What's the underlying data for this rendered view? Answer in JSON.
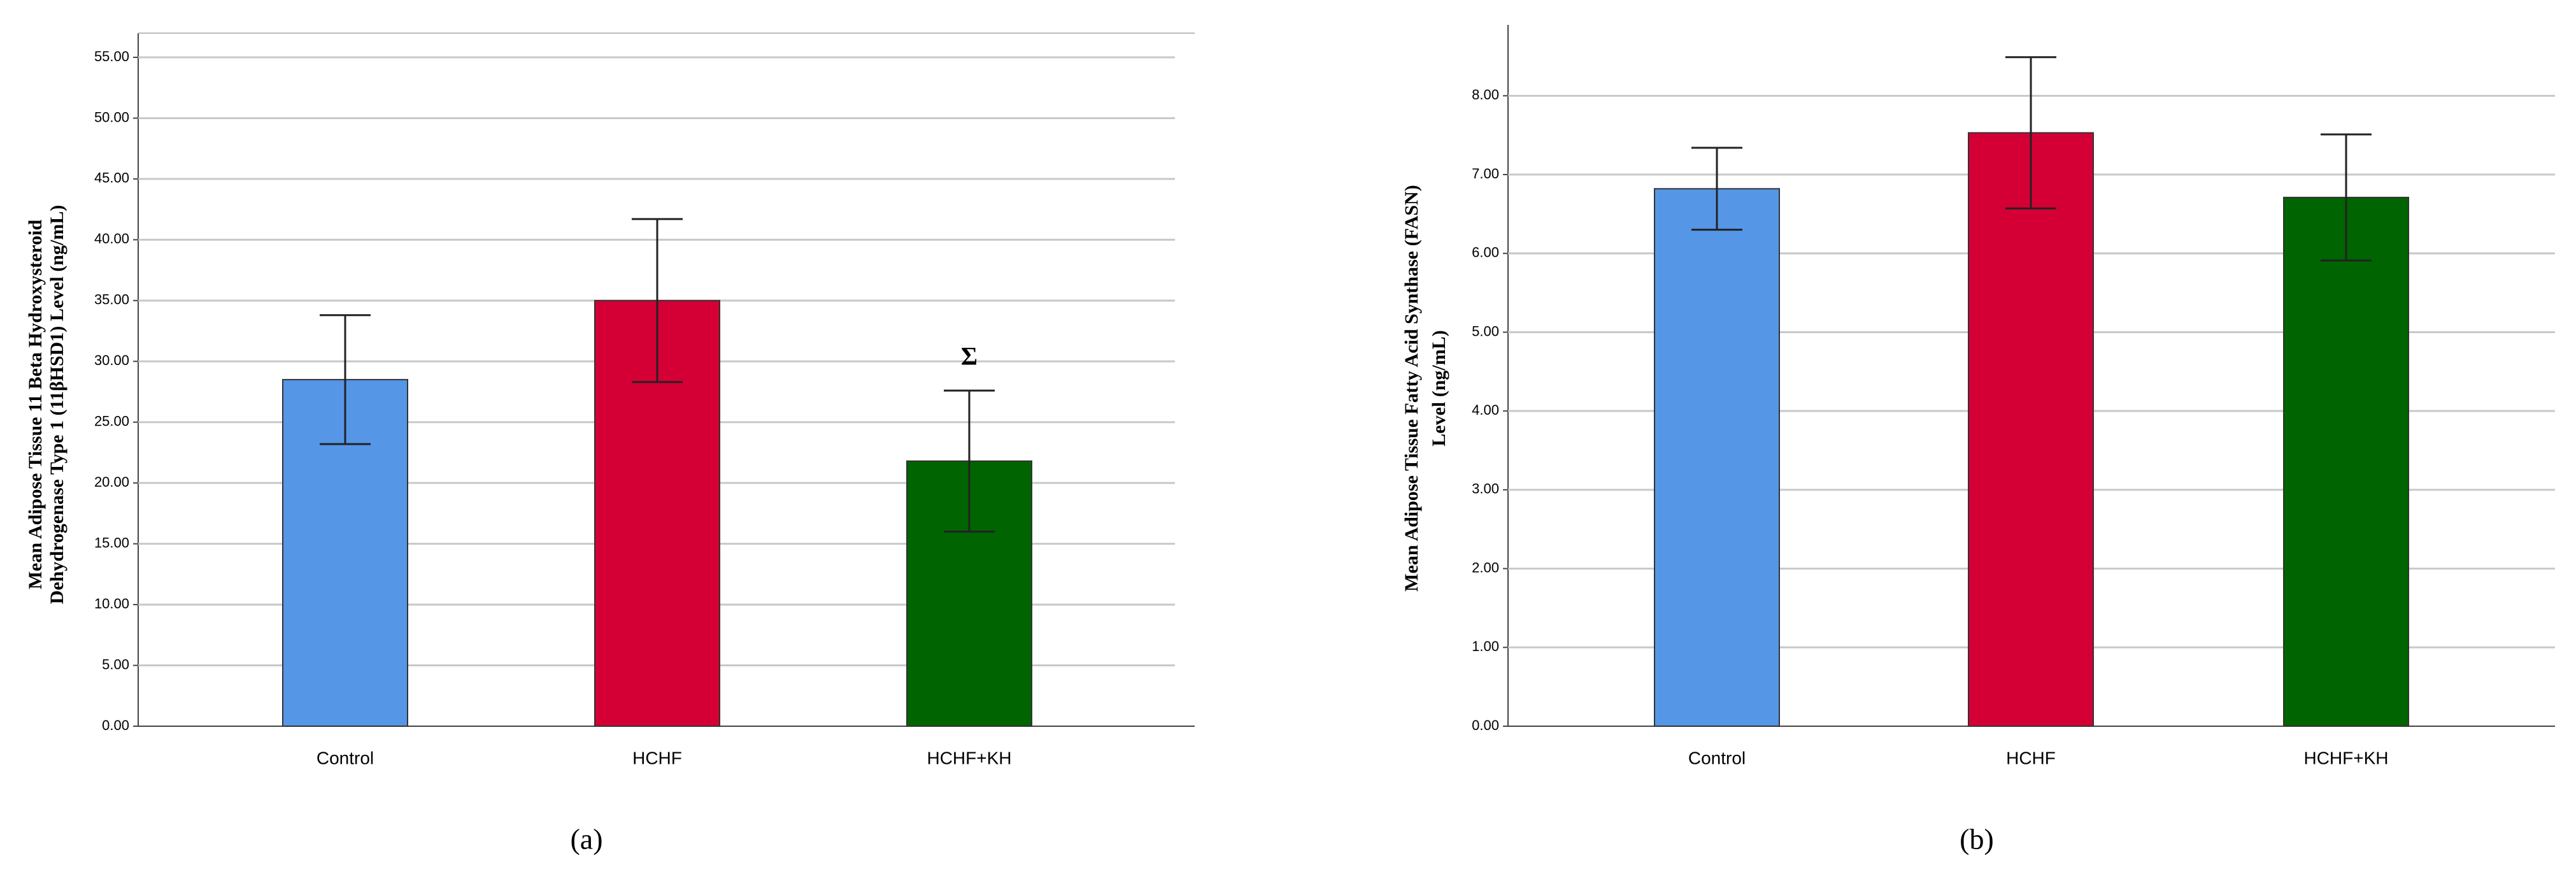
{
  "chart_data": [
    {
      "type": "bar",
      "panel_label": "(a)",
      "ylabel": [
        "Mean Adipose Tissue 11 Beta Hydroxysteroid",
        "Dehydrogenase Type 1 (11βHSD1) Level (ng/mL)"
      ],
      "categories": [
        "Control",
        "HCHF",
        "HCHF+KH"
      ],
      "values": [
        28.5,
        35.0,
        21.8
      ],
      "errors": [
        5.3,
        6.7,
        5.8
      ],
      "colors": [
        "#5596e6",
        "#d40035",
        "#006400"
      ],
      "ylim": [
        0,
        55
      ],
      "yticks": [
        {
          "value": 0,
          "label": "0.00"
        },
        {
          "value": 5,
          "label": "5.00"
        },
        {
          "value": 10,
          "label": "10.00"
        },
        {
          "value": 15,
          "label": "15.00"
        },
        {
          "value": 20,
          "label": "20.00"
        },
        {
          "value": 25,
          "label": "25.00"
        },
        {
          "value": 30,
          "label": "30.00"
        },
        {
          "value": 35,
          "label": "35.00"
        },
        {
          "value": 40,
          "label": "40.00"
        },
        {
          "value": 45,
          "label": "45.00"
        },
        {
          "value": 50,
          "label": "50.00"
        },
        {
          "value": 55,
          "label": "55.00"
        }
      ],
      "grid": true,
      "annotations": [
        {
          "text": "Σ",
          "category": "HCHF+KH"
        }
      ]
    },
    {
      "type": "bar",
      "panel_label": "(b)",
      "ylabel": [
        "Mean Adipose Tissue Fatty Acid Synthase (FASN)",
        "Level (ng/mL)"
      ],
      "categories": [
        "Control",
        "HCHF",
        "HCHF+KH"
      ],
      "values": [
        6.82,
        7.53,
        6.71
      ],
      "errors": [
        0.52,
        0.96,
        0.8
      ],
      "colors": [
        "#5596e6",
        "#d40035",
        "#006400"
      ],
      "ylim": [
        0,
        8.9
      ],
      "yticks": [
        {
          "value": 0,
          "label": "0.00"
        },
        {
          "value": 1,
          "label": "1.00"
        },
        {
          "value": 2,
          "label": "2.00"
        },
        {
          "value": 3,
          "label": "3.00"
        },
        {
          "value": 4,
          "label": "4.00"
        },
        {
          "value": 5,
          "label": "5.00"
        },
        {
          "value": 6,
          "label": "6.00"
        },
        {
          "value": 7,
          "label": "7.00"
        },
        {
          "value": 8,
          "label": "8.00"
        }
      ],
      "grid": true
    }
  ]
}
